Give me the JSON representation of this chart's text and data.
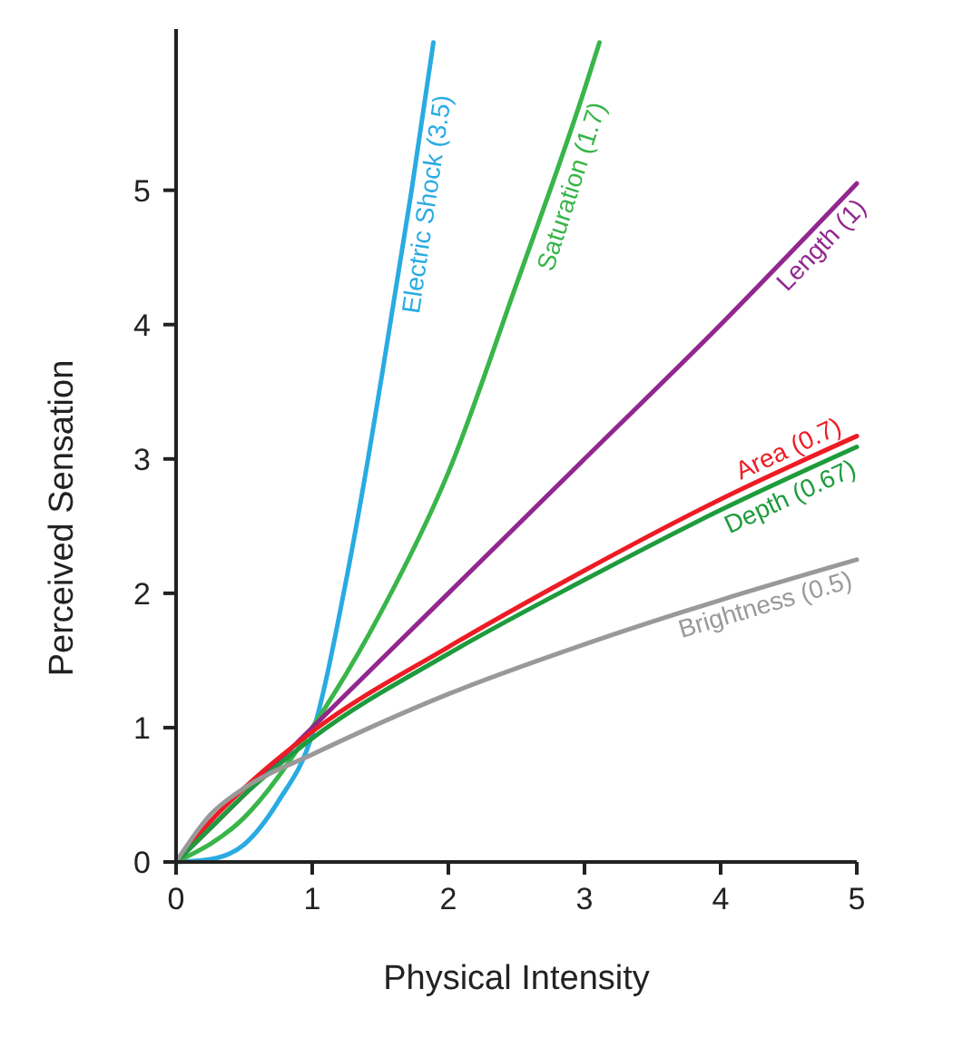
{
  "chart_data": {
    "type": "line",
    "xlabel": "Physical Intensity",
    "ylabel": "Perceived Sensation",
    "xlim": [
      0,
      5
    ],
    "ylim": [
      0,
      6.2
    ],
    "xticks": [
      0,
      1,
      2,
      3,
      4,
      5
    ],
    "yticks": [
      0,
      1,
      2,
      3,
      4,
      5
    ],
    "grid": false,
    "marker": "none",
    "line_style": "solid",
    "series": [
      {
        "name": "Electric Shock (3.5)",
        "color": "#29abe2",
        "x": [
          0,
          0.25,
          0.5,
          0.75,
          1,
          1.25,
          1.41,
          1.5,
          1.73,
          1.89
        ],
        "values": [
          0,
          0.02,
          0.13,
          0.45,
          0.95,
          2.1,
          3,
          3.55,
          5,
          6.1
        ]
      },
      {
        "name": "Saturation (1.7)",
        "color": "#39b54a",
        "x": [
          0,
          0.5,
          1,
          1.5,
          2,
          2.5,
          3,
          3.11
        ],
        "values": [
          0,
          0.33,
          1,
          1.85,
          2.9,
          4.3,
          5.75,
          6.1
        ]
      },
      {
        "name": "Length (1)",
        "color": "#92278f",
        "x": [
          0,
          1,
          2,
          3,
          4,
          5
        ],
        "values": [
          0,
          1,
          2,
          3,
          4,
          5.05
        ]
      },
      {
        "name": "Area (0.7)",
        "color": "#ed1c24",
        "x": [
          0,
          0.25,
          0.5,
          1,
          2,
          3,
          4,
          5
        ],
        "values": [
          0,
          0.3,
          0.55,
          0.97,
          1.6,
          2.17,
          2.7,
          3.17
        ]
      },
      {
        "name": "Depth (0.67)",
        "color": "#1e9b3c",
        "x": [
          0,
          0.25,
          0.5,
          1,
          2,
          3,
          4,
          5
        ],
        "values": [
          0,
          0.25,
          0.5,
          0.92,
          1.55,
          2.1,
          2.62,
          3.09
        ]
      },
      {
        "name": "Brightness (0.5)",
        "color": "#999999",
        "x": [
          0,
          0.25,
          0.5,
          1,
          2,
          3,
          4,
          5
        ],
        "values": [
          0,
          0.35,
          0.55,
          0.8,
          1.25,
          1.62,
          1.95,
          2.25
        ]
      }
    ]
  }
}
